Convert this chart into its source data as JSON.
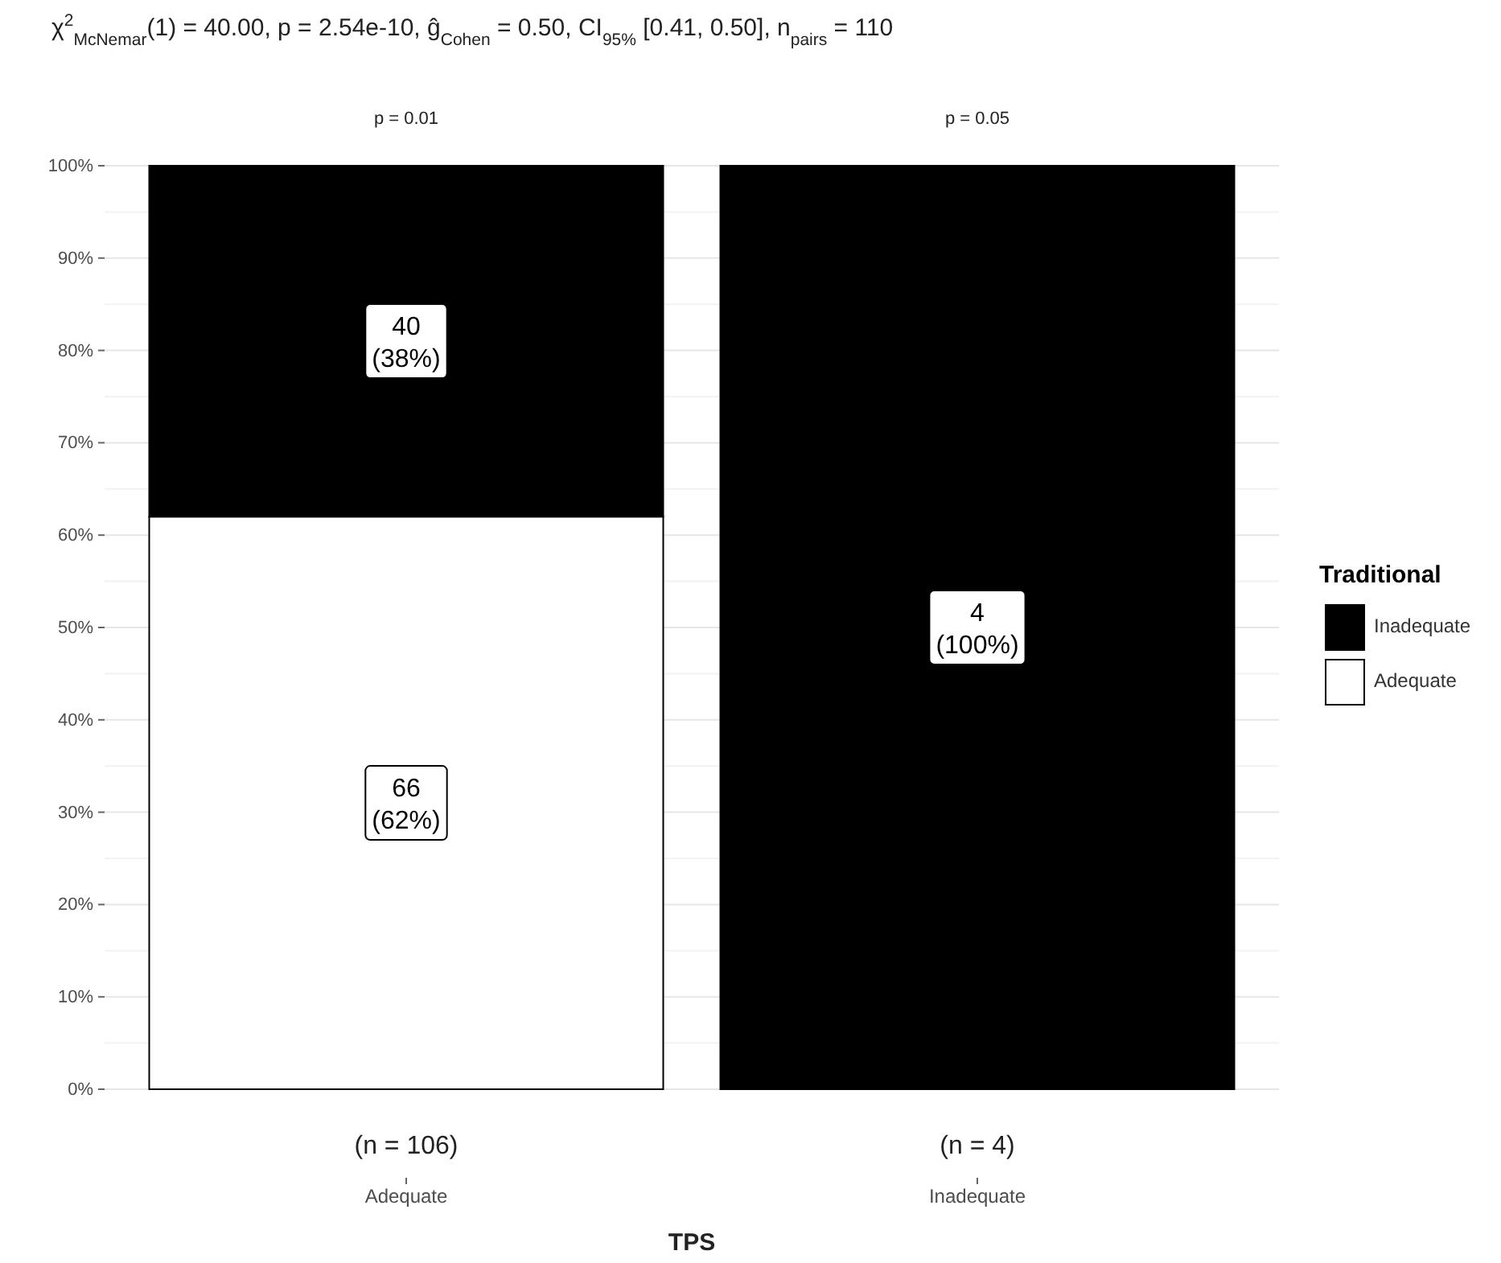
{
  "chart_data": {
    "type": "bar",
    "stacked": true,
    "title": "χ$^{2}$$_{McNemar}$(1) = 40.00, p = 2.54e-10, ĝ$_{Cohen}$ = 0.50, CI$_{95%}$ [0.41, 0.50], n$_{pairs}$ = 110",
    "xlabel": "TPS",
    "legend_title": "Traditional",
    "categories": [
      "Adequate",
      "Inadequate"
    ],
    "series": [
      {
        "name": "Adequate",
        "color": "#ffffff",
        "values": [
          62,
          0
        ],
        "value_labels": [
          "66\n(62%)",
          null
        ]
      },
      {
        "name": "Inadequate",
        "color": "#000000",
        "values": [
          38,
          100
        ],
        "value_labels": [
          "40\n(38%)",
          "4\n(100%)"
        ]
      }
    ],
    "ylim": [
      0,
      100
    ],
    "yticks": [
      {
        "value": 0,
        "label": "0%"
      },
      {
        "value": 10,
        "label": "10%"
      },
      {
        "value": 20,
        "label": "20%"
      },
      {
        "value": 30,
        "label": "30%"
      },
      {
        "value": 40,
        "label": "40%"
      },
      {
        "value": 50,
        "label": "50%"
      },
      {
        "value": 60,
        "label": "60%"
      },
      {
        "value": 70,
        "label": "70%"
      },
      {
        "value": 80,
        "label": "80%"
      },
      {
        "value": 90,
        "label": "90%"
      },
      {
        "value": 100,
        "label": "100%"
      }
    ],
    "grid": "y",
    "legend": "right",
    "annotations": [
      "p = 0.01",
      "p = 0.05",
      "(n = 106)",
      "(n = 4)"
    ]
  }
}
